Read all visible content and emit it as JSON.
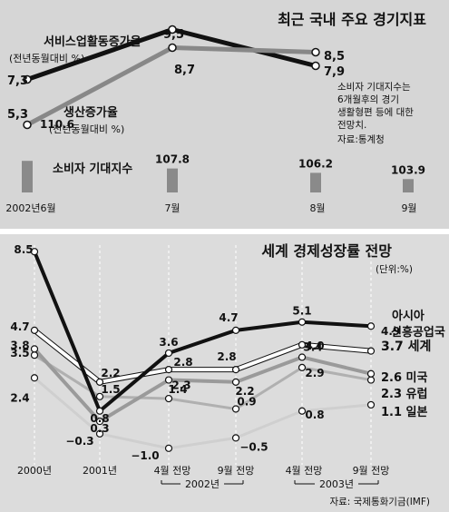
{
  "colors": {
    "background": "#ffffff",
    "panel_top_bg": "#d6d6d6",
    "panel_bottom_bg": "#dcdcdc",
    "black_series": "#111111",
    "dark_gray_series": "#888888",
    "mid_gray_series": "#9a9a9a",
    "light_gray_series": "#cfcfcf",
    "white_series": "#ffffff",
    "bar_fill": "#8a8a8a",
    "text": "#111111"
  },
  "chart_data": [
    {
      "type": "line+bar",
      "title": "최근 국내 주요 경기지표",
      "categories": [
        "2002년6월",
        "7월",
        "8월",
        "9월"
      ],
      "series": [
        {
          "name": "서비스업활동증가율",
          "unit_label": "(전년동월대비 %)",
          "kind": "line",
          "color": "#111111",
          "values": [
            7.3,
            9.5,
            7.9,
            null
          ],
          "labels": [
            "7,3",
            "9,5",
            "7,9",
            ""
          ]
        },
        {
          "name": "생산증가율",
          "unit_label": "(전년동월대비 %)",
          "kind": "line",
          "color": "#888888",
          "values": [
            5.3,
            8.7,
            8.5,
            null
          ],
          "labels": [
            "5,3",
            "8,7",
            "8,5",
            ""
          ]
        },
        {
          "name": "소비자 기대지수",
          "kind": "bar",
          "color": "#8a8a8a",
          "values": [
            110.6,
            107.8,
            106.2,
            103.9
          ],
          "labels": [
            "110.6",
            "107.8",
            "106.2",
            "103.9"
          ]
        }
      ],
      "note_lines": [
        "소비자 기대지수는",
        "6개월후의 경기",
        "생활형편 등에 대한",
        "전망치.",
        "자료:통계청"
      ]
    },
    {
      "type": "line",
      "title": "세계 경제성장률 전망",
      "unit": "(단위:%)",
      "categories": [
        "2000년",
        "2001년",
        "4월 전망",
        "9월 전망",
        "4월 전망",
        "9월 전망"
      ],
      "group_labels": [
        {
          "label": "2002년",
          "from": 2,
          "to": 3
        },
        {
          "label": "2003년",
          "from": 4,
          "to": 5
        }
      ],
      "source": "자료: 국제통화기금(IMF)",
      "series": [
        {
          "name": "아시아 신흥공업국",
          "name_lines": [
            "아시아",
            "신흥공업국"
          ],
          "color": "#111111",
          "values": [
            8.5,
            0.8,
            3.6,
            4.7,
            5.1,
            4.9
          ],
          "labels": [
            "8.5",
            "0.8",
            "3.6",
            "4.7",
            "5.1",
            "4.9"
          ]
        },
        {
          "name": "세계",
          "name_lines": [
            "3.7 세계"
          ],
          "color": "#ffffff",
          "values": [
            4.7,
            2.2,
            2.8,
            2.8,
            4.0,
            3.7
          ],
          "labels": [
            "4.7",
            "2.2",
            "2.8",
            "2.8",
            "4.0",
            ""
          ]
        },
        {
          "name": "미국",
          "name_lines": [
            "2.6 미국"
          ],
          "color": "#9a9a9a",
          "values": [
            3.8,
            0.3,
            2.3,
            2.2,
            3.4,
            2.6
          ],
          "labels": [
            "3.8",
            "0.3",
            "2.3",
            "2.2",
            "3.4",
            ""
          ]
        },
        {
          "name": "유럽",
          "name_lines": [
            "2.3 유럽"
          ],
          "color": "#9a9a9a",
          "values": [
            3.5,
            1.5,
            1.4,
            0.9,
            2.9,
            2.3
          ],
          "labels": [
            "3.5",
            "1.5",
            "1.4",
            "0.9",
            "2.9",
            ""
          ]
        },
        {
          "name": "일본",
          "name_lines": [
            "1.1 일본"
          ],
          "color": "#cfcfcf",
          "values": [
            2.4,
            -0.3,
            -1.0,
            -0.5,
            0.8,
            1.1
          ],
          "labels": [
            "2.4",
            "-0.3",
            "-1.0",
            "-0.5",
            "0.8",
            ""
          ]
        }
      ]
    }
  ]
}
